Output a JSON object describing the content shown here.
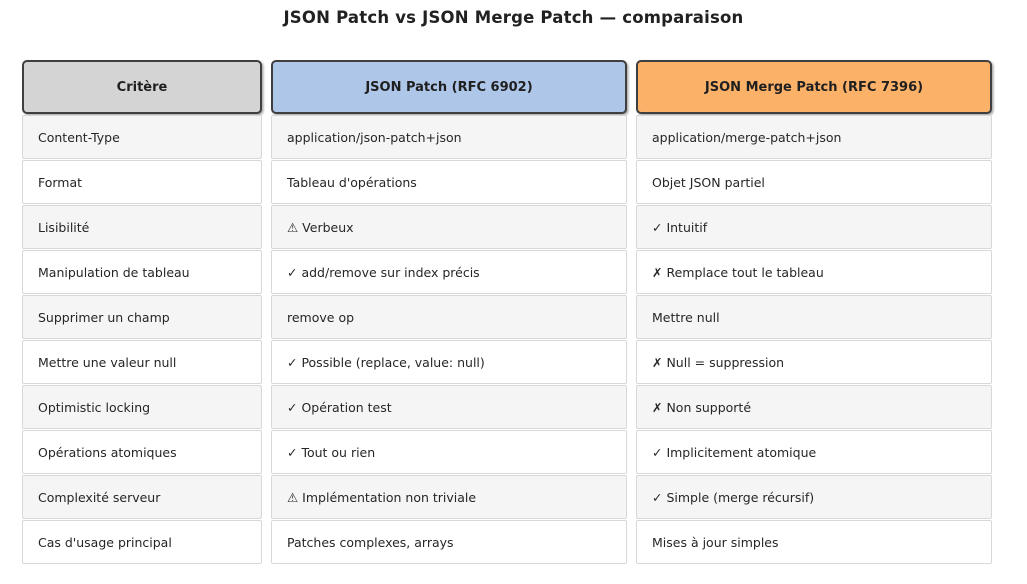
{
  "title": "JSON Patch vs JSON Merge Patch — comparaison",
  "table": {
    "columns": [
      {
        "label": "Critère",
        "header_color": "#d4d4d4"
      },
      {
        "label": "JSON Patch (RFC 6902)",
        "header_color": "#aec6e8"
      },
      {
        "label": "JSON Merge Patch (RFC 7396)",
        "header_color": "#fbb168"
      }
    ],
    "rows": [
      {
        "criterion": "Content-Type",
        "json_patch": "application/json-patch+json",
        "merge_patch": "application/merge-patch+json"
      },
      {
        "criterion": "Format",
        "json_patch": "Tableau d'opérations",
        "merge_patch": "Objet JSON partiel"
      },
      {
        "criterion": "Lisibilité",
        "json_patch": "⚠ Verbeux",
        "merge_patch": "✓ Intuitif"
      },
      {
        "criterion": "Manipulation de tableau",
        "json_patch": "✓ add/remove sur index précis",
        "merge_patch": "✗ Remplace tout le tableau"
      },
      {
        "criterion": "Supprimer un champ",
        "json_patch": "remove op",
        "merge_patch": "Mettre null"
      },
      {
        "criterion": "Mettre une valeur null",
        "json_patch": "✓ Possible (replace, value: null)",
        "merge_patch": "✗ Null = suppression"
      },
      {
        "criterion": "Optimistic locking",
        "json_patch": "✓ Opération test",
        "merge_patch": "✗ Non supporté"
      },
      {
        "criterion": "Opérations atomiques",
        "json_patch": "✓ Tout ou rien",
        "merge_patch": "✓ Implicitement atomique"
      },
      {
        "criterion": "Complexité serveur",
        "json_patch": "⚠ Implémentation non triviale",
        "merge_patch": "✓ Simple (merge récursif)"
      },
      {
        "criterion": "Cas d'usage principal",
        "json_patch": "Patches complexes, arrays",
        "merge_patch": "Mises à jour simples"
      }
    ]
  },
  "chart_data": {
    "type": "table",
    "title": "JSON Patch vs JSON Merge Patch — comparaison",
    "columns": [
      "Critère",
      "JSON Patch (RFC 6902)",
      "JSON Merge Patch (RFC 7396)"
    ],
    "rows": [
      [
        "Content-Type",
        "application/json-patch+json",
        "application/merge-patch+json"
      ],
      [
        "Format",
        "Tableau d'opérations",
        "Objet JSON partiel"
      ],
      [
        "Lisibilité",
        "⚠ Verbeux",
        "✓ Intuitif"
      ],
      [
        "Manipulation de tableau",
        "✓ add/remove sur index précis",
        "✗ Remplace tout le tableau"
      ],
      [
        "Supprimer un champ",
        "remove op",
        "Mettre null"
      ],
      [
        "Mettre une valeur null",
        "✓ Possible (replace, value: null)",
        "✗ Null = suppression"
      ],
      [
        "Optimistic locking",
        "✓ Opération test",
        "✗ Non supporté"
      ],
      [
        "Opérations atomiques",
        "✓ Tout ou rien",
        "✓ Implicitement atomique"
      ],
      [
        "Complexité serveur",
        "⚠ Implémentation non triviale",
        "✓ Simple (merge récursif)"
      ],
      [
        "Cas d'usage principal",
        "Patches complexes, arrays",
        "Mises à jour simples"
      ]
    ],
    "layout_hints": {
      "row_striping": [
        "#f5f5f5",
        "#ffffff"
      ],
      "header_colors": [
        "#d4d4d4",
        "#aec6e8",
        "#fbb168"
      ]
    }
  }
}
